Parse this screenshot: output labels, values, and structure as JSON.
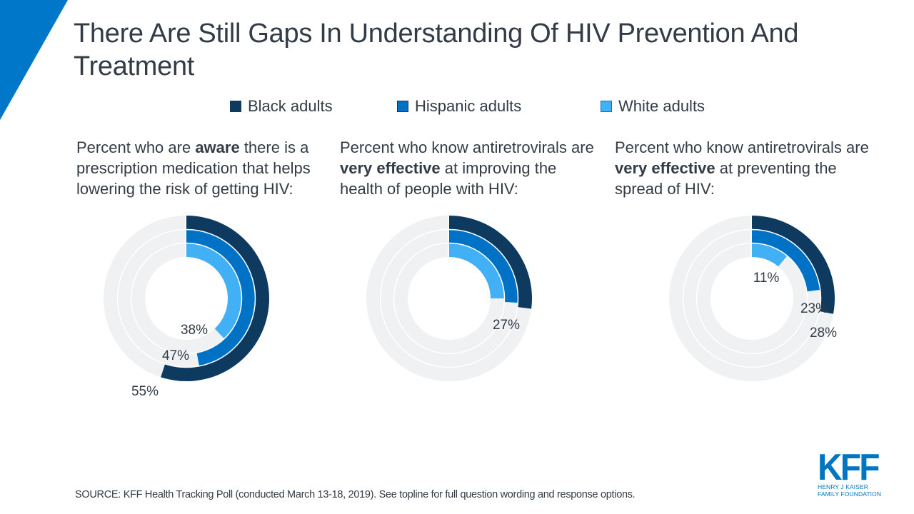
{
  "header": {
    "title": "There Are Still Gaps In Understanding Of HIV Prevention And Treatment"
  },
  "colors": {
    "accent": "#0077c8",
    "black_adults": "#0e3a60",
    "hispanic_adults": "#0072c6",
    "white_adults": "#42b0f5",
    "track": "#f0f1f3",
    "text": "#333c46"
  },
  "legend": [
    {
      "label": "Black adults",
      "color": "#0e3a60"
    },
    {
      "label": "Hispanic adults",
      "color": "#0072c6"
    },
    {
      "label": "White adults",
      "color": "#42b0f5"
    }
  ],
  "panels": [
    {
      "text_pre": "Percent who are ",
      "text_bold": "aware",
      "text_post": " there is a prescription medication that helps lowering the risk of getting HIV:"
    },
    {
      "text_pre": "Percent who know antiretrovirals are ",
      "text_bold": "very effective",
      "text_post": " at improving the health of people with HIV:"
    },
    {
      "text_pre": "Percent who know antiretrovirals are ",
      "text_bold": "very effective",
      "text_post": " at preventing the spread of HIV:"
    }
  ],
  "chart_data": [
    {
      "type": "radial-bar",
      "title": "Percent who are aware there is a prescription medication that helps lowering the risk of getting HIV",
      "series": [
        {
          "name": "Black adults",
          "value": 55,
          "label": "55%"
        },
        {
          "name": "Hispanic adults",
          "value": 47,
          "label": "47%"
        },
        {
          "name": "White adults",
          "value": 38,
          "label": "38%"
        }
      ],
      "range": [
        0,
        100
      ]
    },
    {
      "type": "radial-bar",
      "title": "Percent who know antiretrovirals are very effective at improving the health of people with HIV",
      "series": [
        {
          "name": "Black adults",
          "value": 27,
          "label": "27%"
        },
        {
          "name": "Hispanic adults",
          "value": 26,
          "label": ""
        },
        {
          "name": "White adults",
          "value": 25,
          "label": ""
        }
      ],
      "range": [
        0,
        100
      ]
    },
    {
      "type": "radial-bar",
      "title": "Percent who know antiretrovirals are very effective at preventing the spread of HIV",
      "series": [
        {
          "name": "Black adults",
          "value": 28,
          "label": "28%"
        },
        {
          "name": "Hispanic adults",
          "value": 23,
          "label": "23%"
        },
        {
          "name": "White adults",
          "value": 11,
          "label": "11%"
        }
      ],
      "range": [
        0,
        100
      ]
    }
  ],
  "footer": {
    "source": "SOURCE: KFF Health Tracking Poll (conducted March 13-18, 2019). See topline for full question wording and response options."
  },
  "logo": {
    "main": "KFF",
    "line1": "HENRY J KAISER",
    "line2": "FAMILY FOUNDATION"
  }
}
